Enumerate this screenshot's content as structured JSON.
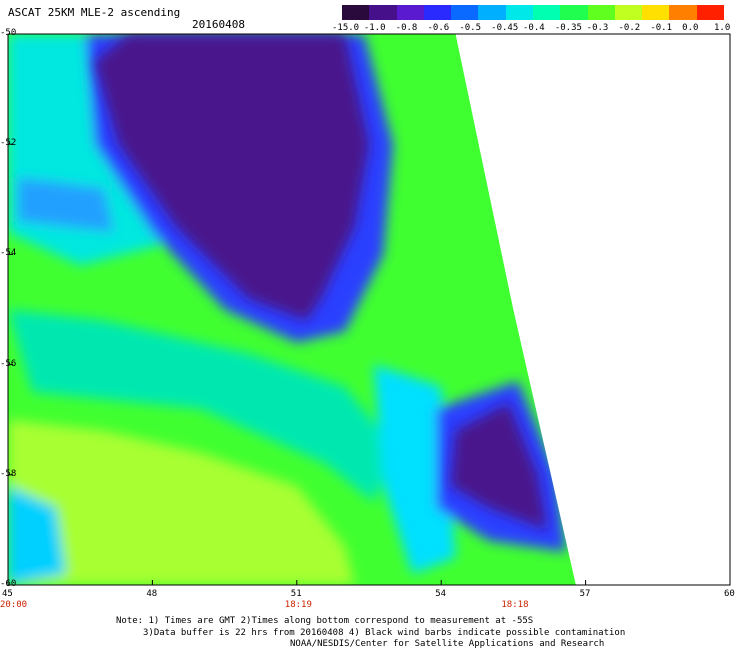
{
  "header": {
    "title": "ASCAT 25KM MLE-2 ascending",
    "date": "20160408"
  },
  "colorbar": {
    "labels": [
      "-15.0",
      "-1.0",
      "-0.8",
      "-0.6",
      "-0.5",
      "-0.45",
      "-0.4",
      "-0.35",
      "-0.3",
      "-0.2",
      "-0.1",
      "0.0",
      "1.0"
    ],
    "colors": [
      "#2a0a3c",
      "#46108a",
      "#5a1ad0",
      "#2a2aff",
      "#0a6aff",
      "#00b0ff",
      "#00e8e8",
      "#00ffb0",
      "#20ff50",
      "#60ff20",
      "#c0ff20",
      "#ffe000",
      "#ff8000",
      "#ff2000"
    ]
  },
  "chart_data": {
    "type": "heatmap",
    "title": "ASCAT 25KM MLE-2 ascending",
    "date": "20160408",
    "x_axis": {
      "ticks": [
        "45",
        "48",
        "51",
        "54",
        "57",
        "60"
      ],
      "range": [
        45,
        60
      ]
    },
    "y_axis": {
      "ticks": [
        "-50",
        "-52",
        "-54",
        "-56",
        "-58",
        "-60"
      ],
      "range": [
        -60,
        -50
      ]
    },
    "time_labels": [
      {
        "x": 45.0,
        "text": "20:00",
        "color": "#cc2200"
      },
      {
        "x": 51.0,
        "text": "18:19",
        "color": "#cc2200"
      },
      {
        "x": 55.5,
        "text": "18:18",
        "color": "#cc2200"
      }
    ],
    "swath_edge": [
      [
        54.3,
        -50
      ],
      [
        55.5,
        -55
      ],
      [
        56.8,
        -60
      ]
    ],
    "regions": [
      {
        "name": "low-mle-north",
        "level": -1.0,
        "polygon": [
          [
            47.5,
            -50
          ],
          [
            52,
            -50
          ],
          [
            52.5,
            -52
          ],
          [
            52.2,
            -53.5
          ],
          [
            51.5,
            -54.8
          ],
          [
            51.2,
            -55.2
          ],
          [
            50,
            -54.8
          ],
          [
            48.5,
            -53.5
          ],
          [
            47.3,
            -52
          ],
          [
            46.8,
            -50.5
          ]
        ]
      },
      {
        "name": "low-mle-south",
        "level": -1.0,
        "polygon": [
          [
            54.3,
            -57.2
          ],
          [
            55.4,
            -56.7
          ],
          [
            56.0,
            -58.0
          ],
          [
            56.2,
            -59.0
          ],
          [
            55.0,
            -58.6
          ],
          [
            54.2,
            -58.2
          ]
        ]
      }
    ]
  },
  "footer": {
    "note_line1": "Note: 1) Times are GMT 2)Times along bottom correspond to measurement at -55S",
    "note_line2": "3)Data buffer is 22 hrs from 20160408 4) Black wind barbs indicate possible contamination",
    "note_line3": "NOAA/NESDIS/Center for Satellite Applications and Research"
  }
}
